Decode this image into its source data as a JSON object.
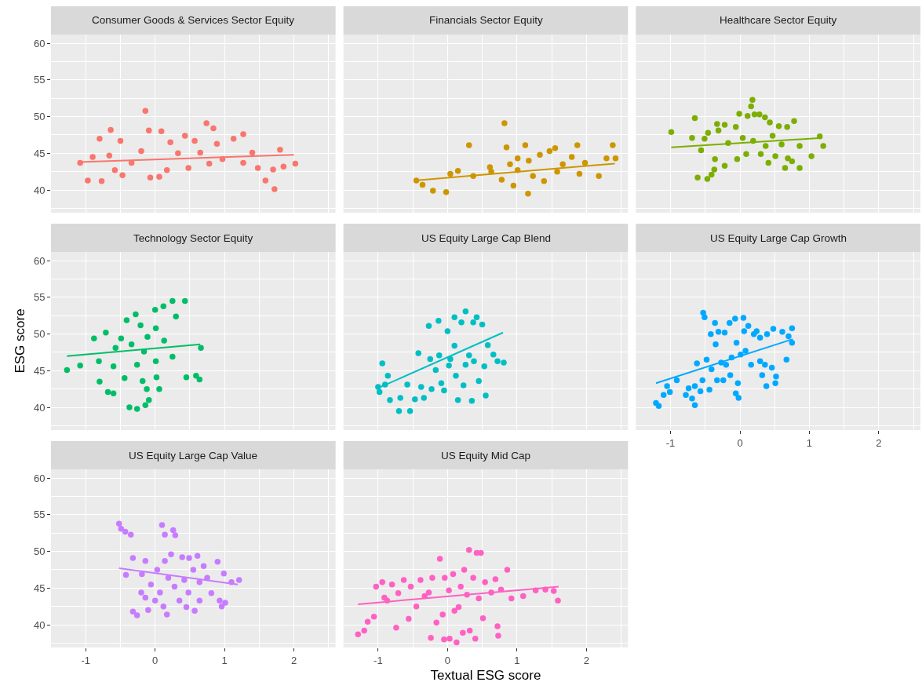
{
  "chart_data": [
    {
      "type": "scatter",
      "title": "Consumer Goods & Services Sector Equity",
      "xlim": [
        -1.5,
        2.6
      ],
      "ylim": [
        36.9,
        61.2
      ],
      "xticks": [
        -1,
        0,
        1,
        2
      ],
      "yticks": [
        40,
        45,
        50,
        55,
        60
      ],
      "grid": true,
      "marker": "circle",
      "tick_labels": "y",
      "series": [
        {
          "color": "#f8766d",
          "x": [
            -1.08,
            -0.97,
            -0.9,
            -0.8,
            -0.77,
            -0.64,
            -0.66,
            -0.58,
            -0.5,
            -0.47,
            -0.34,
            -0.2,
            -0.14,
            -0.09,
            -0.07,
            0.06,
            0.09,
            0.17,
            0.22,
            0.33,
            0.43,
            0.48,
            0.57,
            0.65,
            0.74,
            0.78,
            0.84,
            0.89,
            0.97,
            1.13,
            1.27,
            1.27,
            1.4,
            1.48,
            1.59,
            1.7,
            1.72,
            1.8,
            1.85,
            2.02
          ],
          "values": [
            43.7,
            41.3,
            44.5,
            47.0,
            41.2,
            48.2,
            44.7,
            42.7,
            46.7,
            42.0,
            43.7,
            45.3,
            50.8,
            48.1,
            41.7,
            41.8,
            48.0,
            42.7,
            46.5,
            45.0,
            47.4,
            43.0,
            46.7,
            45.1,
            49.1,
            43.6,
            48.4,
            46.3,
            44.2,
            47.0,
            47.6,
            43.7,
            45.1,
            43.0,
            41.3,
            42.8,
            40.1,
            45.5,
            43.2,
            43.6
          ]
        },
        {
          "type": "line",
          "marker": "none",
          "color": "#f8766d",
          "x": [
            -1.1,
            2.0
          ],
          "values": [
            43.8,
            44.8
          ]
        }
      ]
    },
    {
      "type": "scatter",
      "title": "Financials Sector Equity",
      "xlim": [
        -1.5,
        2.6
      ],
      "ylim": [
        36.9,
        61.2
      ],
      "xticks": [
        -1,
        0,
        1,
        2
      ],
      "yticks": [
        40,
        45,
        50,
        55,
        60
      ],
      "grid": true,
      "marker": "circle",
      "tick_labels": false,
      "series": [
        {
          "color": "#cd9600",
          "x": [
            -0.45,
            -0.36,
            -0.21,
            -0.02,
            0.04,
            0.15,
            0.31,
            0.37,
            0.61,
            0.82,
            0.78,
            0.85,
            0.9,
            0.95,
            1.01,
            1.12,
            1.16,
            1.17,
            1.23,
            1.33,
            1.39,
            1.47,
            1.55,
            1.58,
            1.66,
            1.79,
            1.87,
            1.9,
            1.98,
            2.18,
            2.29,
            2.38,
            2.42,
            1.01,
            0.63
          ],
          "values": [
            41.3,
            40.7,
            39.9,
            39.7,
            42.2,
            42.6,
            46.1,
            41.9,
            43.1,
            49.1,
            41.4,
            45.8,
            43.5,
            40.6,
            42.7,
            46.1,
            39.5,
            44.0,
            41.9,
            44.8,
            41.2,
            45.3,
            45.7,
            42.5,
            43.5,
            44.5,
            46.1,
            42.2,
            43.7,
            41.9,
            44.3,
            46.1,
            44.3,
            44.3,
            42.5
          ]
        },
        {
          "type": "line",
          "marker": "none",
          "color": "#cd9600",
          "x": [
            -0.47,
            2.41
          ],
          "values": [
            41.3,
            43.6
          ]
        }
      ]
    },
    {
      "type": "scatter",
      "title": "Healthcare Sector Equity",
      "xlim": [
        -1.5,
        2.6
      ],
      "ylim": [
        36.9,
        61.2
      ],
      "xticks": [
        -1,
        0,
        1,
        2
      ],
      "yticks": [
        40,
        45,
        50,
        55,
        60
      ],
      "grid": true,
      "marker": "circle",
      "tick_labels": false,
      "series": [
        {
          "color": "#7cae00",
          "x": [
            -0.99,
            -0.65,
            -0.69,
            -0.56,
            -0.51,
            -0.46,
            -0.61,
            -0.47,
            -0.41,
            -0.37,
            -0.36,
            -0.33,
            -0.31,
            -0.22,
            -0.22,
            -0.17,
            -0.06,
            -0.04,
            -0.01,
            0.04,
            0.09,
            0.11,
            0.16,
            0.18,
            0.19,
            0.21,
            0.28,
            0.3,
            0.36,
            0.37,
            0.41,
            0.43,
            0.47,
            0.51,
            0.56,
            0.6,
            0.65,
            0.68,
            0.69,
            0.75,
            0.78,
            0.86,
            0.86,
            1.03,
            1.15,
            1.2
          ],
          "values": [
            47.9,
            49.8,
            47.1,
            45.4,
            47.0,
            47.8,
            41.7,
            41.5,
            42.1,
            42.8,
            44.2,
            49.0,
            48.1,
            48.9,
            43.3,
            46.4,
            48.6,
            44.2,
            50.4,
            47.1,
            44.9,
            50.1,
            51.4,
            52.3,
            46.7,
            50.3,
            50.3,
            44.9,
            49.9,
            46.0,
            43.7,
            49.2,
            47.4,
            44.6,
            48.7,
            46.2,
            43.0,
            48.6,
            44.3,
            43.9,
            49.4,
            46.0,
            43.0,
            44.6,
            47.3,
            46.0
          ]
        },
        {
          "type": "line",
          "marker": "none",
          "color": "#7cae00",
          "x": [
            -0.99,
            1.18
          ],
          "values": [
            45.8,
            47.1
          ]
        }
      ]
    },
    {
      "type": "scatter",
      "title": "Technology Sector Equity",
      "ylabel": "ESG score",
      "xlim": [
        -1.5,
        2.6
      ],
      "ylim": [
        36.9,
        61.2
      ],
      "xticks": [
        -1,
        0,
        1,
        2
      ],
      "yticks": [
        40,
        45,
        50,
        55,
        60
      ],
      "grid": true,
      "marker": "circle",
      "tick_labels": "y",
      "series": [
        {
          "color": "#00be67",
          "x": [
            -1.27,
            -1.08,
            -0.88,
            -0.8,
            -0.81,
            -0.71,
            -0.68,
            -0.6,
            -0.6,
            -0.57,
            -0.49,
            -0.41,
            -0.44,
            -0.37,
            -0.34,
            -0.28,
            -0.26,
            -0.26,
            -0.21,
            -0.18,
            -0.16,
            -0.14,
            -0.12,
            -0.11,
            -0.09,
            0.0,
            0.01,
            0.02,
            0.01,
            0.06,
            0.12,
            0.13,
            0.25,
            0.25,
            0.3,
            0.43,
            0.45,
            0.59,
            0.64,
            0.66
          ],
          "values": [
            45.1,
            45.7,
            49.4,
            43.5,
            46.3,
            50.2,
            42.1,
            41.9,
            45.6,
            48.1,
            49.4,
            51.9,
            44.0,
            40.0,
            48.6,
            52.7,
            39.8,
            45.8,
            51.2,
            43.6,
            47.6,
            40.3,
            42.5,
            49.6,
            41.0,
            53.3,
            50.8,
            44.1,
            46.3,
            42.5,
            53.8,
            49.1,
            54.5,
            46.9,
            52.4,
            54.5,
            44.1,
            44.3,
            43.8,
            48.1
          ]
        },
        {
          "type": "line",
          "marker": "none",
          "color": "#00be67",
          "x": [
            -1.27,
            0.65
          ],
          "values": [
            47.0,
            48.6
          ]
        }
      ]
    },
    {
      "type": "scatter",
      "title": "US Equity Large Cap Blend",
      "xlim": [
        -1.5,
        2.6
      ],
      "ylim": [
        36.9,
        61.2
      ],
      "xticks": [
        -1,
        0,
        1,
        2
      ],
      "yticks": [
        40,
        45,
        50,
        55,
        60
      ],
      "grid": true,
      "marker": "circle",
      "tick_labels": false,
      "series": [
        {
          "color": "#00bfc4",
          "x": [
            -1.0,
            -0.98,
            -0.94,
            -0.9,
            -0.86,
            -0.83,
            -0.7,
            -0.68,
            -0.54,
            -0.58,
            -0.47,
            -0.42,
            -0.38,
            -0.34,
            -0.27,
            -0.25,
            -0.23,
            -0.17,
            -0.13,
            -0.12,
            -0.09,
            -0.05,
            0.0,
            0.02,
            0.04,
            0.1,
            0.1,
            0.12,
            0.15,
            0.2,
            0.23,
            0.26,
            0.26,
            0.31,
            0.35,
            0.37,
            0.38,
            0.42,
            0.45,
            0.5,
            0.53,
            0.55,
            0.58,
            0.66,
            0.72,
            0.81
          ],
          "values": [
            42.8,
            42.1,
            46.0,
            43.1,
            44.3,
            41.0,
            39.5,
            41.3,
            39.5,
            43.1,
            41.1,
            47.4,
            42.8,
            41.3,
            51.1,
            46.6,
            42.5,
            45.1,
            51.8,
            47.1,
            43.3,
            42.3,
            50.4,
            45.7,
            46.6,
            48.4,
            52.3,
            44.3,
            41.0,
            51.6,
            43.0,
            53.1,
            45.8,
            47.1,
            40.9,
            51.6,
            46.3,
            52.3,
            43.6,
            51.3,
            45.6,
            41.6,
            48.5,
            47.2,
            46.3,
            46.1
          ]
        },
        {
          "type": "line",
          "marker": "none",
          "color": "#00bfc4",
          "x": [
            -1.03,
            0.8
          ],
          "values": [
            42.5,
            50.2
          ]
        }
      ]
    },
    {
      "type": "scatter",
      "title": "US Equity Large Cap Growth",
      "xlim": [
        -1.5,
        2.6
      ],
      "ylim": [
        36.9,
        61.2
      ],
      "xticks": [
        -1,
        0,
        1,
        2
      ],
      "yticks": [
        40,
        45,
        50,
        55,
        60
      ],
      "grid": true,
      "marker": "circle",
      "tick_labels": "x",
      "series": [
        {
          "color": "#00a9ff",
          "x": [
            -1.21,
            -1.17,
            -1.1,
            -1.05,
            -1.01,
            -0.91,
            -0.78,
            -0.74,
            -0.69,
            -0.65,
            -0.65,
            -0.62,
            -0.57,
            -0.54,
            -0.53,
            -0.51,
            -0.48,
            -0.44,
            -0.42,
            -0.41,
            -0.36,
            -0.35,
            -0.33,
            -0.31,
            -0.27,
            -0.24,
            -0.22,
            -0.2,
            -0.15,
            -0.14,
            -0.12,
            -0.07,
            -0.06,
            -0.05,
            -0.03,
            -0.02,
            0.01,
            0.05,
            0.06,
            0.08,
            0.12,
            0.16,
            0.2,
            0.24,
            0.29,
            0.29,
            0.32,
            0.36,
            0.38,
            0.39,
            0.46,
            0.48,
            0.51,
            0.52,
            0.67,
            0.61,
            0.7,
            0.75,
            0.75
          ],
          "values": [
            40.6,
            40.2,
            41.7,
            42.9,
            42.1,
            43.7,
            41.7,
            42.6,
            41.2,
            40.3,
            42.9,
            46.0,
            42.2,
            43.7,
            52.9,
            52.3,
            46.5,
            42.4,
            50.0,
            45.2,
            51.5,
            48.6,
            43.7,
            50.3,
            46.1,
            43.7,
            50.2,
            45.8,
            51.5,
            44.4,
            46.8,
            52.1,
            41.9,
            48.8,
            43.3,
            41.3,
            47.2,
            52.2,
            50.4,
            47.7,
            51.1,
            45.8,
            50.0,
            50.4,
            49.5,
            46.3,
            44.4,
            45.8,
            42.9,
            50.0,
            45.4,
            50.7,
            43.3,
            44.2,
            46.5,
            50.3,
            49.7,
            50.8,
            48.8
          ]
        },
        {
          "type": "line",
          "marker": "none",
          "color": "#00a9ff",
          "x": [
            -1.21,
            0.76
          ],
          "values": [
            43.3,
            49.3
          ]
        }
      ]
    },
    {
      "type": "scatter",
      "title": "US Equity Large Cap Value",
      "xlim": [
        -1.5,
        2.6
      ],
      "ylim": [
        36.9,
        61.2
      ],
      "xticks": [
        -1,
        0,
        1,
        2
      ],
      "yticks": [
        40,
        45,
        50,
        55,
        60
      ],
      "grid": true,
      "marker": "circle",
      "series": [
        {
          "color": "#c77cff",
          "x": [
            -0.52,
            -0.49,
            -0.43,
            -0.35,
            -0.42,
            -0.32,
            -0.32,
            -0.26,
            -0.2,
            -0.19,
            -0.14,
            -0.14,
            -0.1,
            -0.06,
            0.0,
            0.03,
            0.07,
            0.1,
            0.12,
            0.14,
            0.14,
            0.17,
            0.19,
            0.23,
            0.26,
            0.28,
            0.29,
            0.35,
            0.39,
            0.42,
            0.45,
            0.48,
            0.49,
            0.55,
            0.57,
            0.61,
            0.64,
            0.64,
            0.7,
            0.75,
            0.81,
            0.9,
            0.93,
            0.96,
            0.99,
            1.01,
            1.1,
            1.21
          ],
          "values": [
            53.8,
            53.1,
            52.7,
            52.3,
            46.8,
            49.1,
            41.8,
            41.3,
            44.4,
            46.9,
            48.7,
            43.7,
            42.0,
            45.5,
            43.3,
            47.5,
            44.4,
            53.6,
            42.5,
            48.7,
            52.3,
            41.4,
            46.4,
            49.6,
            52.9,
            45.2,
            52.2,
            43.3,
            49.2,
            46.1,
            42.4,
            44.4,
            49.1,
            47.5,
            41.9,
            49.4,
            45.8,
            43.3,
            48.0,
            46.4,
            44.3,
            48.6,
            43.3,
            42.5,
            47.0,
            43.0,
            45.8,
            46.1
          ]
        },
        {
          "type": "line",
          "marker": "none",
          "color": "#c77cff",
          "x": [
            -0.52,
            1.19
          ],
          "values": [
            47.7,
            45.5
          ]
        }
      ]
    },
    {
      "type": "scatter",
      "title": "US Equity Mid Cap",
      "xlabel": "Textual ESG score",
      "xlim": [
        -1.5,
        2.6
      ],
      "ylim": [
        36.9,
        61.2
      ],
      "xticks": [
        -1,
        0,
        1,
        2
      ],
      "yticks": [
        40,
        45,
        50,
        55,
        60
      ],
      "grid": true,
      "marker": "circle",
      "tick_labels": "x",
      "series": [
        {
          "color": "#ff61c3",
          "x": [
            -1.29,
            -1.2,
            -1.15,
            -1.06,
            -1.03,
            -0.94,
            -0.91,
            -0.87,
            -0.8,
            -0.71,
            -0.63,
            -0.74,
            -0.56,
            -0.53,
            -0.45,
            -0.39,
            -0.33,
            -0.27,
            -0.24,
            -0.22,
            -0.16,
            -0.11,
            -0.07,
            -0.05,
            -0.04,
            0.02,
            0.03,
            0.08,
            0.1,
            0.13,
            0.16,
            0.19,
            0.22,
            0.24,
            0.28,
            0.31,
            0.32,
            0.37,
            0.4,
            0.42,
            0.45,
            0.48,
            0.51,
            0.54,
            0.63,
            0.69,
            0.72,
            0.73,
            0.77,
            0.86,
            0.92,
            1.09,
            1.27,
            1.41,
            1.53,
            1.59
          ],
          "values": [
            38.7,
            39.2,
            40.4,
            41.1,
            45.2,
            45.8,
            43.7,
            43.3,
            45.5,
            44.3,
            46.1,
            39.6,
            40.8,
            45.2,
            42.5,
            46.1,
            43.9,
            44.4,
            38.2,
            46.4,
            40.3,
            49.0,
            41.4,
            38.0,
            46.4,
            44.7,
            38.1,
            46.9,
            41.9,
            37.6,
            42.4,
            45.2,
            38.9,
            47.5,
            44.1,
            50.2,
            39.2,
            46.4,
            38.1,
            49.8,
            43.6,
            49.8,
            40.9,
            45.8,
            44.4,
            46.2,
            39.8,
            38.5,
            44.8,
            47.5,
            43.6,
            43.9,
            44.7,
            44.8,
            44.6,
            43.3
          ]
        },
        {
          "type": "line",
          "marker": "none",
          "color": "#ff61c3",
          "x": [
            -1.29,
            1.6
          ],
          "values": [
            42.8,
            45.2
          ]
        }
      ]
    }
  ]
}
